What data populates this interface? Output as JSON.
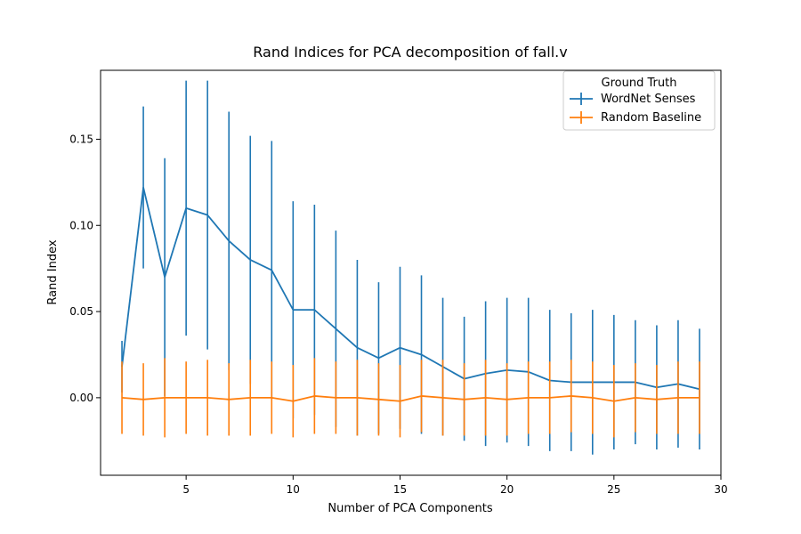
{
  "chart_data": {
    "type": "line",
    "title": "Rand Indices for PCA decomposition of fall.v",
    "xlabel": "Number of PCA Components",
    "ylabel": "Rand Index",
    "xlim": [
      1,
      30
    ],
    "ylim": [
      -0.045,
      0.19
    ],
    "xticks": [
      5,
      10,
      15,
      20,
      25,
      30
    ],
    "yticks": [
      0.0,
      0.05,
      0.1,
      0.15
    ],
    "xtick_labels": [
      "5",
      "10",
      "15",
      "20",
      "25",
      "30"
    ],
    "ytick_labels": [
      "0.00",
      "0.05",
      "0.10",
      "0.15"
    ],
    "grid": false,
    "legend": {
      "title": "Ground Truth",
      "placement": "top-right"
    },
    "x": [
      2,
      3,
      4,
      5,
      6,
      7,
      8,
      9,
      10,
      11,
      12,
      13,
      14,
      15,
      16,
      17,
      18,
      19,
      20,
      21,
      22,
      23,
      24,
      25,
      26,
      27,
      28,
      29
    ],
    "series": [
      {
        "name": "WordNet Senses",
        "color": "#1f77b4",
        "values": [
          0.018,
          0.122,
          0.07,
          0.11,
          0.106,
          0.091,
          0.08,
          0.074,
          0.051,
          0.051,
          0.04,
          0.029,
          0.023,
          0.029,
          0.025,
          0.018,
          0.011,
          0.014,
          0.016,
          0.015,
          0.01,
          0.009,
          0.009,
          0.009,
          0.009,
          0.006,
          0.008,
          0.005
        ],
        "errors": [
          0.015,
          0.047,
          0.069,
          0.074,
          0.078,
          0.075,
          0.072,
          0.075,
          0.063,
          0.061,
          0.057,
          0.051,
          0.044,
          0.047,
          0.046,
          0.04,
          0.036,
          0.042,
          0.042,
          0.043,
          0.041,
          0.04,
          0.042,
          0.039,
          0.036,
          0.036,
          0.037,
          0.035
        ]
      },
      {
        "name": "Random Baseline",
        "color": "#ff7f0e",
        "values": [
          0.0,
          -0.001,
          0.0,
          0.0,
          0.0,
          -0.001,
          0.0,
          0.0,
          -0.002,
          0.001,
          0.0,
          0.0,
          -0.001,
          -0.002,
          0.001,
          0.0,
          -0.001,
          0.0,
          -0.001,
          0.0,
          0.0,
          0.001,
          0.0,
          -0.002,
          0.0,
          -0.001,
          0.0,
          0.0
        ],
        "errors": [
          0.021,
          0.021,
          0.023,
          0.021,
          0.022,
          0.021,
          0.022,
          0.021,
          0.021,
          0.022,
          0.021,
          0.022,
          0.021,
          0.021,
          0.021,
          0.022,
          0.021,
          0.022,
          0.021,
          0.021,
          0.021,
          0.021,
          0.021,
          0.021,
          0.02,
          0.02,
          0.021,
          0.021
        ]
      }
    ]
  }
}
